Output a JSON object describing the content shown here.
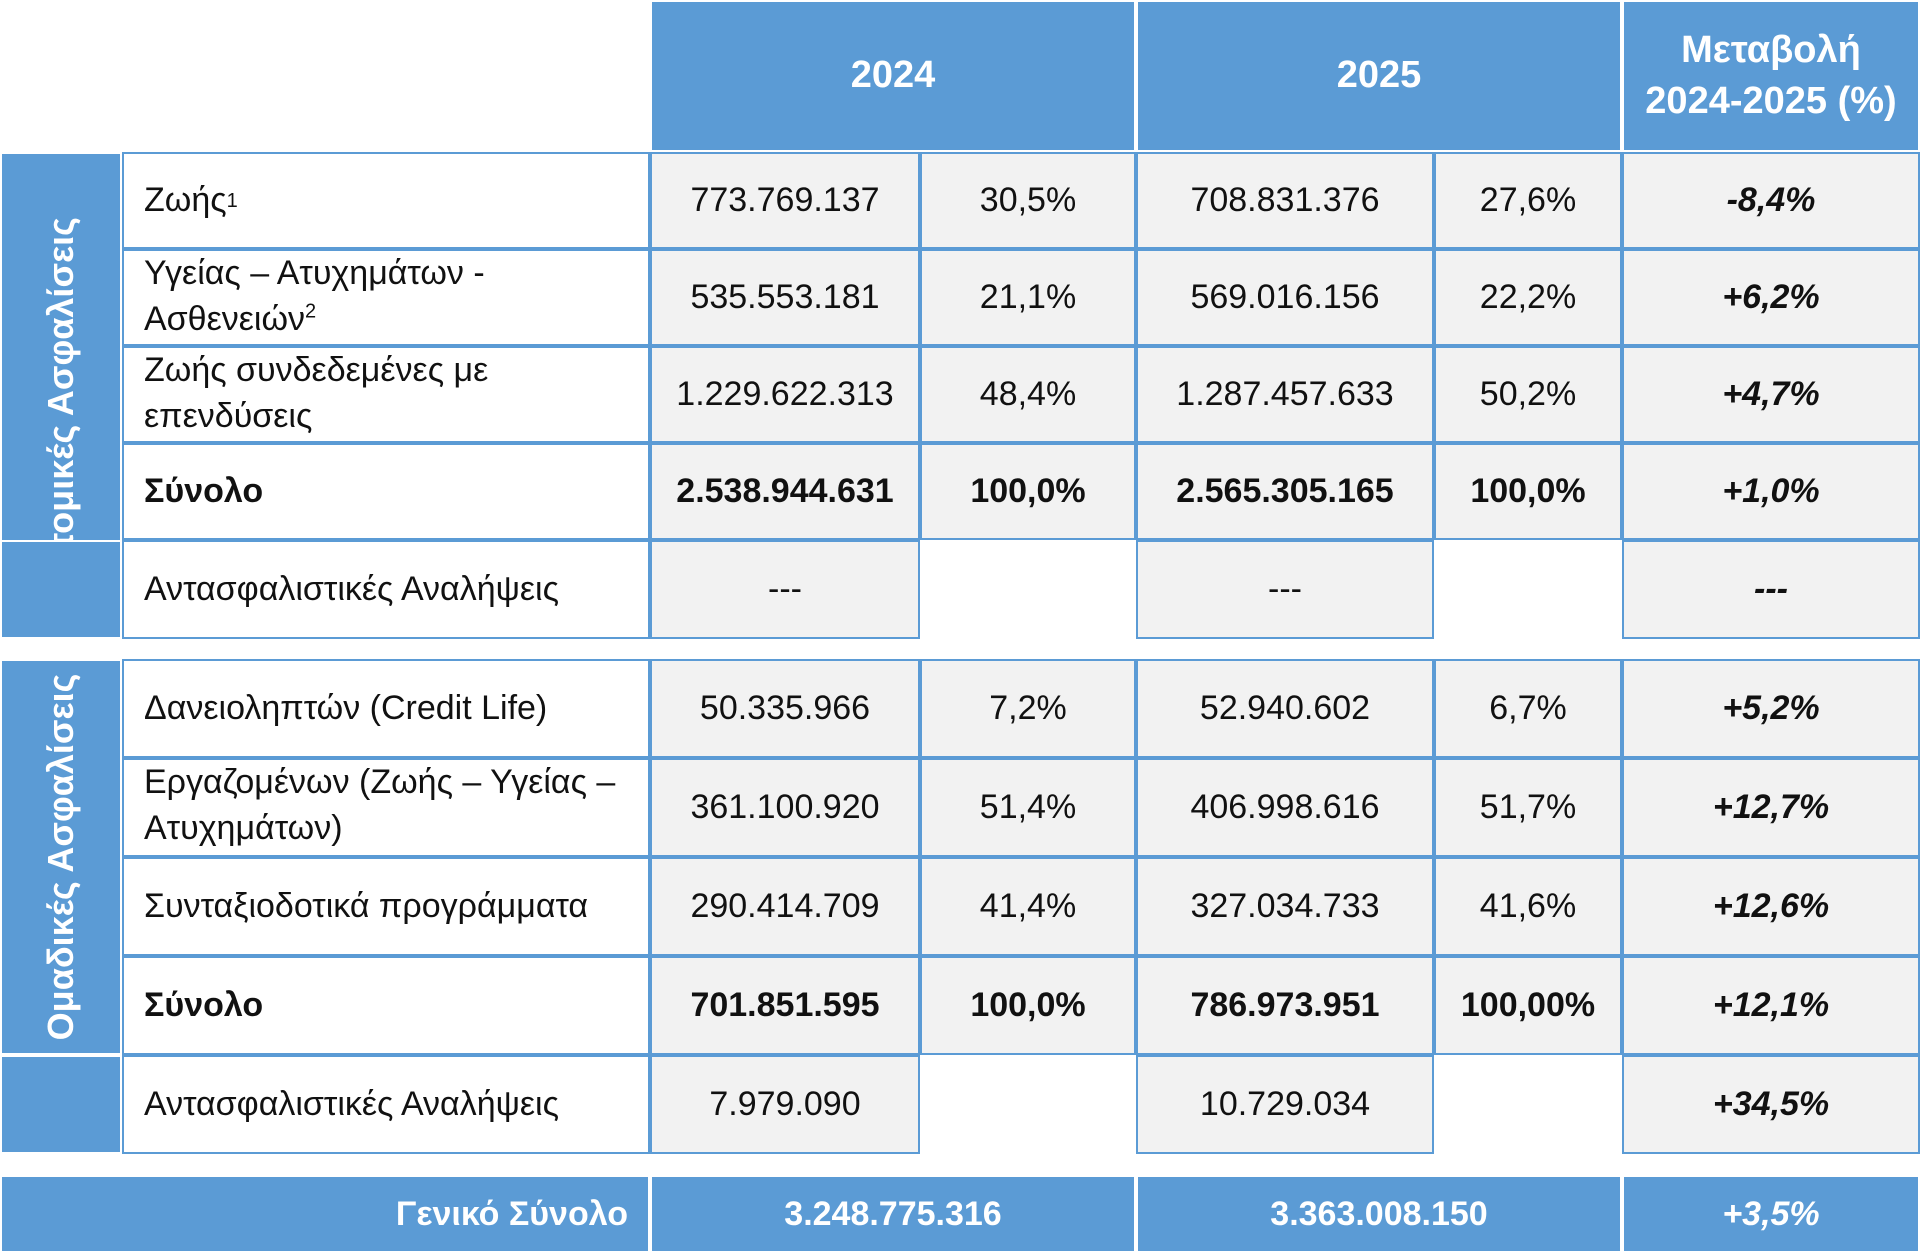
{
  "header": {
    "year_2024": "2024",
    "year_2025": "2025",
    "change_line1": "Μεταβολή",
    "change_line2": "2024-2025 (%)"
  },
  "individual": {
    "section_label": "Ατομικές Ασφαλίσεις",
    "rows": [
      {
        "label": "Ζωής",
        "sup": "1",
        "v2024": "773.769.137",
        "p2024": "30,5%",
        "v2025": "708.831.376",
        "p2025": "27,6%",
        "change": "-8,4%"
      },
      {
        "label_line1": "Υγείας – Ατυχημάτων -",
        "label_line2": "Ασθενειών",
        "sup": "2",
        "v2024": "535.553.181",
        "p2024": "21,1%",
        "v2025": "569.016.156",
        "p2025": "22,2%",
        "change": "+6,2%"
      },
      {
        "label_line1": "Ζωής συνδεδεμένες με",
        "label_line2": "επενδύσεις",
        "v2024": "1.229.622.313",
        "p2024": "48,4%",
        "v2025": "1.287.457.633",
        "p2025": "50,2%",
        "change": "+4,7%"
      }
    ],
    "total": {
      "label": "Σύνολο",
      "v2024": "2.538.944.631",
      "p2024": "100,0%",
      "v2025": "2.565.305.165",
      "p2025": "100,0%",
      "change": "+1,0%"
    },
    "reinsurance": {
      "label": "Αντασφαλιστικές Αναλήψεις",
      "v2024": "---",
      "v2025": "---",
      "change": "---"
    }
  },
  "group": {
    "section_label": "Ομαδικές Ασφαλίσεις",
    "rows": [
      {
        "label": "Δανειοληπτών (Credit Life)",
        "v2024": "50.335.966",
        "p2024": "7,2%",
        "v2025": "52.940.602",
        "p2025": "6,7%",
        "change": "+5,2%"
      },
      {
        "label_line1": "Εργαζομένων (Ζωής – Υγείας –",
        "label_line2": "Ατυχημάτων)",
        "v2024": "361.100.920",
        "p2024": "51,4%",
        "v2025": "406.998.616",
        "p2025": "51,7%",
        "change": "+12,7%"
      },
      {
        "label": "Συνταξιοδοτικά προγράμματα",
        "v2024": "290.414.709",
        "p2024": "41,4%",
        "v2025": "327.034.733",
        "p2025": "41,6%",
        "change": "+12,6%"
      }
    ],
    "total": {
      "label": "Σύνολο",
      "v2024": "701.851.595",
      "p2024": "100,0%",
      "v2025": "786.973.951",
      "p2025": "100,00%",
      "change": "+12,1%"
    },
    "reinsurance": {
      "label": "Αντασφαλιστικές Αναλήψεις",
      "v2024": "7.979.090",
      "v2025": "10.729.034",
      "change": "+34,5%"
    }
  },
  "grand_total": {
    "label": "Γενικό Σύνολο",
    "v2024": "3.248.775.316",
    "v2025": "3.363.008.150",
    "change": "+3,5%"
  }
}
